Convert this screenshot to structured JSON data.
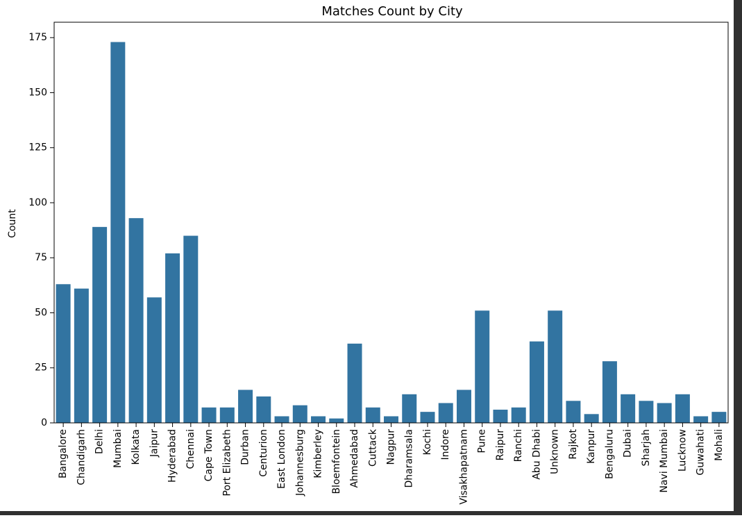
{
  "chart_data": {
    "type": "bar",
    "title": "Matches Count by City",
    "xlabel": "",
    "ylabel": "Count",
    "ylim": [
      0,
      182
    ],
    "yticks": [
      0,
      25,
      50,
      75,
      100,
      125,
      150,
      175
    ],
    "grid": false,
    "bar_color": "#3274a1",
    "categories": [
      "Bangalore",
      "Chandigarh",
      "Delhi",
      "Mumbai",
      "Kolkata",
      "Jaipur",
      "Hyderabad",
      "Chennai",
      "Cape Town",
      "Port Elizabeth",
      "Durban",
      "Centurion",
      "East London",
      "Johannesburg",
      "Kimberley",
      "Bloemfontein",
      "Ahmedabad",
      "Cuttack",
      "Nagpur",
      "Dharamsala",
      "Kochi",
      "Indore",
      "Visakhapatnam",
      "Pune",
      "Raipur",
      "Ranchi",
      "Abu Dhabi",
      "Unknown",
      "Rajkot",
      "Kanpur",
      "Bengaluru",
      "Dubai",
      "Sharjah",
      "Navi Mumbai",
      "Lucknow",
      "Guwahati",
      "Mohali"
    ],
    "values": [
      63,
      61,
      89,
      173,
      93,
      57,
      77,
      85,
      7,
      7,
      15,
      12,
      3,
      8,
      3,
      2,
      36,
      7,
      3,
      13,
      5,
      9,
      15,
      51,
      6,
      7,
      37,
      51,
      10,
      4,
      28,
      13,
      10,
      9,
      13,
      3,
      5
    ]
  }
}
